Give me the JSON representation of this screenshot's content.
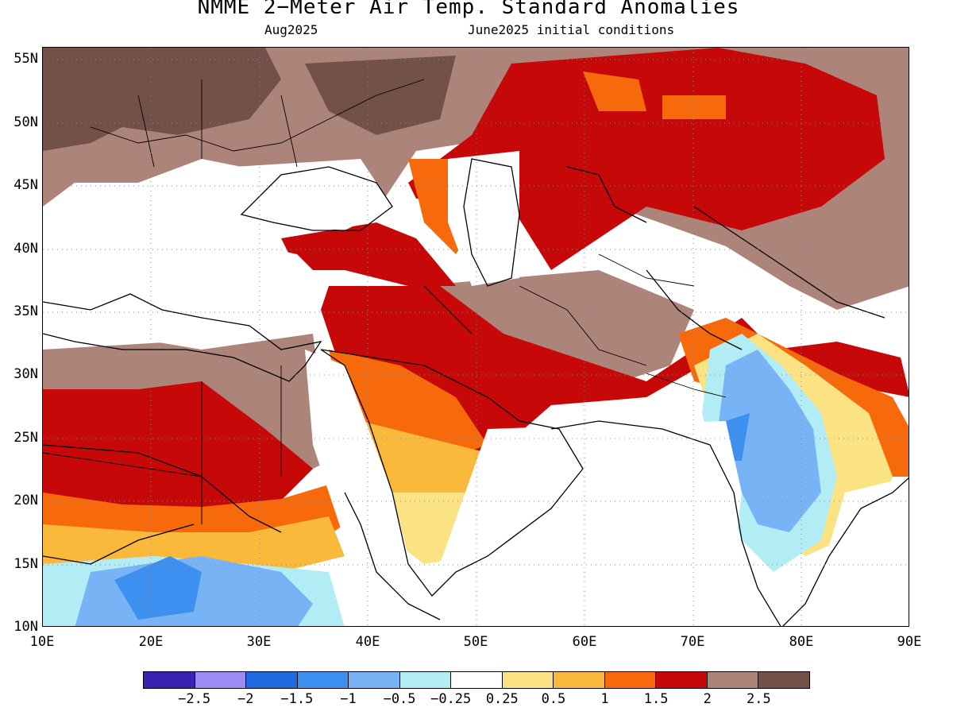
{
  "title": "NMME 2−Meter Air Temp. Standard Anomalies",
  "subtitle_left": "Aug2025",
  "subtitle_right": "June2025 initial conditions",
  "map": {
    "lon_range": [
      10,
      90
    ],
    "lat_range": [
      10,
      56
    ],
    "lat_ticks": [
      "55N",
      "50N",
      "45N",
      "40N",
      "35N",
      "30N",
      "25N",
      "20N",
      "15N",
      "10N"
    ],
    "lon_ticks": [
      "10E",
      "20E",
      "30E",
      "40E",
      "50E",
      "60E",
      "70E",
      "80E",
      "90E"
    ],
    "grid": true
  },
  "colorbar": {
    "colors": [
      "#3a22b4",
      "#9e8af5",
      "#1f6ae0",
      "#3d8ff0",
      "#78b4f5",
      "#b2ecf5",
      "#ffffff",
      "#fbe384",
      "#fbb93c",
      "#f76a0c",
      "#c70808",
      "#ad847a",
      "#735149"
    ],
    "labels": [
      "−2.5",
      "−2",
      "−1.5",
      "−1",
      "−0.5",
      "−0.25",
      "0.25",
      "0.5",
      "1",
      "1.5",
      "2",
      "2.5"
    ]
  }
}
